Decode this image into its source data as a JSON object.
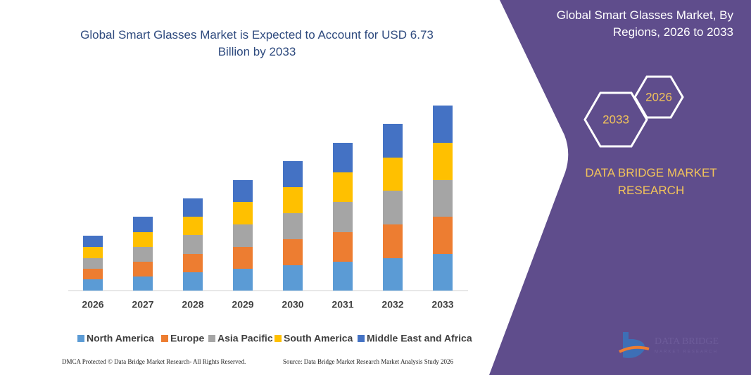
{
  "chart_data": {
    "type": "stacked-bar",
    "title": "Global Smart Glasses Market is Expected to Account for USD 6.73 Billion by 2033",
    "categories": [
      "2026",
      "2027",
      "2028",
      "2029",
      "2030",
      "2031",
      "2032",
      "2033"
    ],
    "series": [
      {
        "name": "North America",
        "color": "#5b9bd5",
        "values": [
          16,
          20,
          26,
          31,
          36,
          41,
          46,
          52
        ]
      },
      {
        "name": "Europe",
        "color": "#ed7d31",
        "values": [
          15,
          21,
          26,
          31,
          37,
          42,
          48,
          53
        ]
      },
      {
        "name": "Asia Pacific",
        "color": "#a5a5a5",
        "values": [
          15,
          21,
          27,
          32,
          37,
          43,
          48,
          52
        ]
      },
      {
        "name": "South America",
        "color": "#ffc000",
        "values": [
          16,
          21,
          26,
          32,
          37,
          42,
          47,
          53
        ]
      },
      {
        "name": "Middle East and Africa",
        "color": "#4472c4",
        "values": [
          16,
          22,
          26,
          31,
          37,
          42,
          48,
          53
        ]
      }
    ],
    "ylim": [
      0,
      270
    ]
  },
  "panel": {
    "title": "Global Smart Glasses Market, By Regions, 2026 to 2033",
    "hexagons": [
      "2026",
      "2033"
    ],
    "brand": "DATA BRIDGE MARKET RESEARCH",
    "logo": {
      "name": "DATA BRIDGE",
      "tagline": "MARKET RESEARCH"
    }
  },
  "footer": {
    "left": "DMCA Protected © Data Bridge Market Research- All Rights Reserved.",
    "right": "Source: Data Bridge Market Research Market Analysis Study 2026"
  }
}
